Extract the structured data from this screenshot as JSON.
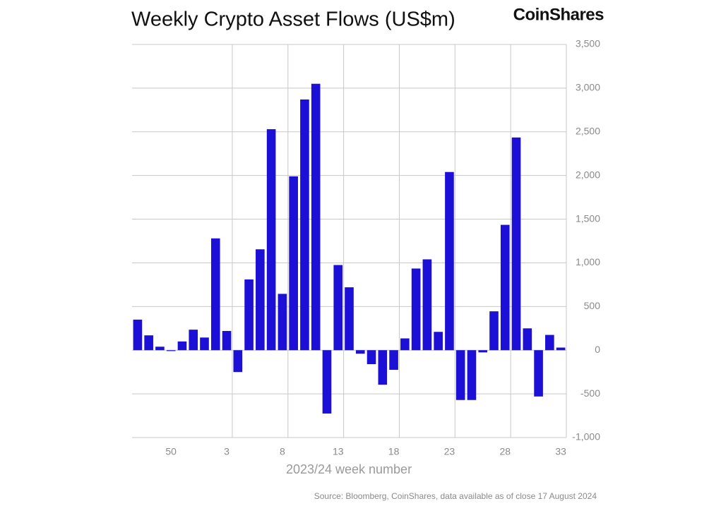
{
  "chart_data": {
    "type": "bar",
    "title": "Weekly Crypto Asset Flows (US$m)",
    "brand": "CoinShares",
    "x_label": "2023/24 week number",
    "source": "Source: Bloomberg, CoinShares, data available as of close 17 August 2024",
    "categories": [
      null,
      null,
      null,
      "50",
      null,
      null,
      null,
      null,
      "3",
      null,
      null,
      null,
      null,
      "8",
      null,
      null,
      null,
      null,
      "13",
      null,
      null,
      null,
      null,
      "18",
      null,
      null,
      null,
      null,
      "23",
      null,
      null,
      null,
      null,
      "28",
      null,
      null,
      null,
      null,
      "33"
    ],
    "values": [
      350,
      170,
      40,
      -10,
      100,
      235,
      145,
      1280,
      220,
      -250,
      810,
      1155,
      2530,
      645,
      1990,
      2870,
      3050,
      -725,
      975,
      720,
      -40,
      -160,
      -395,
      -225,
      135,
      935,
      1040,
      210,
      2040,
      -570,
      -570,
      -25,
      445,
      1435,
      2435,
      250,
      -530,
      175,
      30
    ],
    "color": "#1c10d6",
    "ylim": [
      -1000,
      3500
    ],
    "yticks": [
      {
        "value": -1000,
        "label": "-1,000"
      },
      -500,
      0,
      500,
      {
        "value": 1000,
        "label": "1,000"
      },
      {
        "value": 1500,
        "label": "1,500"
      },
      {
        "value": 2000,
        "label": "2,000"
      },
      {
        "value": 2500,
        "label": "2,500"
      },
      {
        "value": 3000,
        "label": "3,000"
      },
      {
        "value": 3500,
        "label": "3,500"
      }
    ],
    "grid": true
  }
}
